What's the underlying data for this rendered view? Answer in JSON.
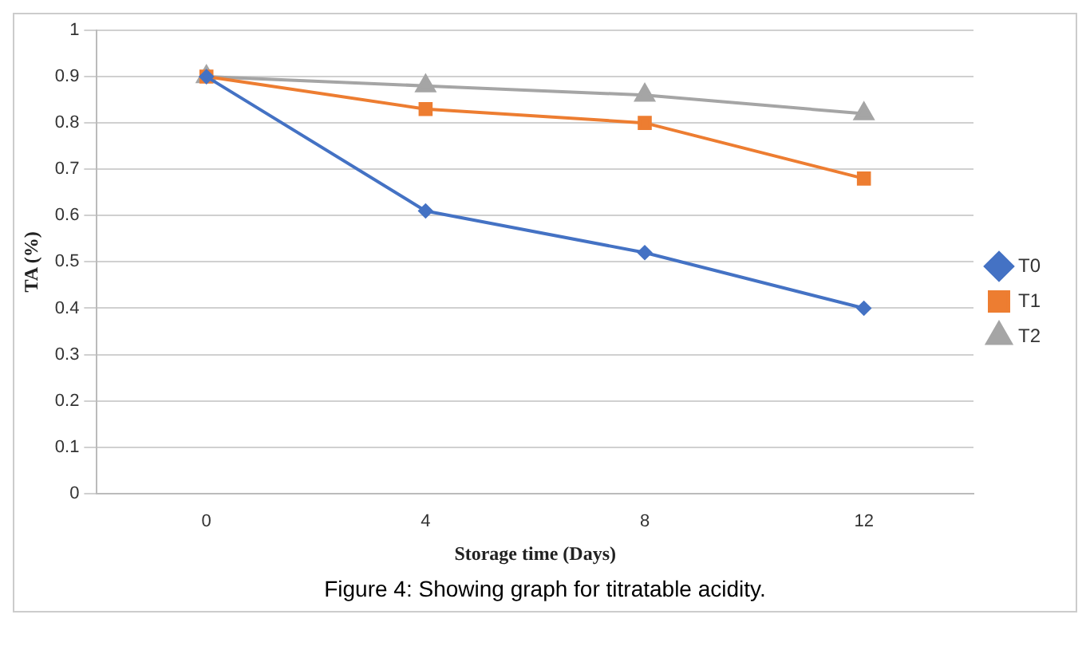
{
  "chart_data": {
    "type": "line",
    "xlabel": "Storage time (Days)",
    "ylabel": "TA (%)",
    "categories": [
      "0",
      "4",
      "8",
      "12"
    ],
    "series": [
      {
        "name": "T0",
        "color": "#4472c4",
        "marker": "diamond",
        "values": [
          0.9,
          0.61,
          0.52,
          0.4
        ]
      },
      {
        "name": "T1",
        "color": "#ed7d31",
        "marker": "square",
        "values": [
          0.9,
          0.83,
          0.8,
          0.68
        ]
      },
      {
        "name": "T2",
        "color": "#a5a5a5",
        "marker": "triangle",
        "values": [
          0.9,
          0.88,
          0.86,
          0.82
        ]
      }
    ],
    "ylim": [
      0,
      1
    ],
    "yticks": [
      0,
      0.1,
      0.2,
      0.3,
      0.4,
      0.5,
      0.6,
      0.7,
      0.8,
      0.9,
      1
    ],
    "grid": "y",
    "legend": "right",
    "line_style": "solid",
    "annotations": [
      "Figure 4: Showing graph for titratable acidity."
    ]
  }
}
